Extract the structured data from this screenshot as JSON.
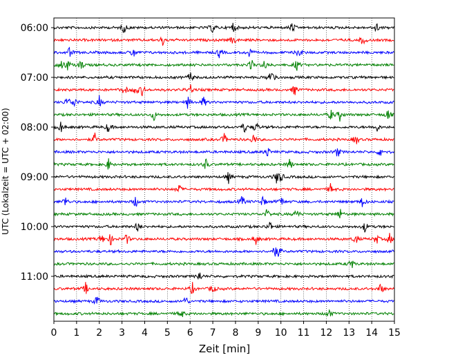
{
  "chart_data": {
    "type": "line",
    "subtype": "helicorder",
    "xlabel": "Zeit  [min]",
    "ylabel": "UTC (Lokalzeit = UTC + 02:00)",
    "x_ticks": [
      "0",
      "1",
      "2",
      "3",
      "4",
      "5",
      "6",
      "7",
      "8",
      "9",
      "10",
      "11",
      "12",
      "13",
      "14",
      "15"
    ],
    "xlim": [
      0,
      15
    ],
    "y_tick_labels": [
      "06:00",
      "07:00",
      "08:00",
      "09:00",
      "10:00",
      "11:00"
    ],
    "grid": "vertical dotted at each minute",
    "trace_count": 24,
    "trace_colors": [
      "#000000",
      "#ff0000",
      "#0000ff",
      "#008000"
    ],
    "traces": [
      {
        "start": "06:00",
        "events": [
          3.1,
          7.0,
          7.9,
          10.5,
          14.2
        ]
      },
      {
        "start": "06:15",
        "events": [
          4.8,
          7.9,
          13.6
        ]
      },
      {
        "start": "06:30",
        "events": [
          0.7,
          3.5,
          7.3,
          8.6,
          10.8
        ]
      },
      {
        "start": "06:45",
        "events": [
          0.3,
          0.6,
          1.2,
          8.7,
          9.3,
          10.7
        ]
      },
      {
        "start": "07:00",
        "events": [
          6.0,
          9.5,
          9.7
        ]
      },
      {
        "start": "07:15",
        "events": [
          3.1,
          3.6,
          3.9,
          6.0,
          10.6
        ]
      },
      {
        "start": "07:30",
        "events": [
          0.6,
          0.9,
          2.0,
          5.9,
          6.6
        ]
      },
      {
        "start": "07:45",
        "events": [
          4.4,
          12.2,
          12.6,
          14.7
        ]
      },
      {
        "start": "08:00",
        "events": [
          0.3,
          2.4,
          8.4,
          8.9,
          14.2
        ]
      },
      {
        "start": "08:15",
        "events": [
          1.8,
          7.5,
          8.8,
          13.3
        ]
      },
      {
        "start": "08:30",
        "events": [
          9.4,
          12.5,
          14.4
        ]
      },
      {
        "start": "08:45",
        "events": [
          2.4,
          6.7,
          10.4
        ]
      },
      {
        "start": "09:00",
        "events": [
          7.7,
          9.8,
          10.0
        ]
      },
      {
        "start": "09:15",
        "events": [
          5.5,
          12.2
        ]
      },
      {
        "start": "09:30",
        "events": [
          0.5,
          3.6,
          8.3,
          9.2,
          10.0,
          13.6
        ]
      },
      {
        "start": "09:45",
        "events": [
          9.4,
          10.7,
          12.6
        ]
      },
      {
        "start": "10:00",
        "events": [
          3.7,
          9.5,
          13.7
        ]
      },
      {
        "start": "10:15",
        "events": [
          2.1,
          2.5,
          3.2,
          8.9,
          13.3,
          14.2,
          14.8
        ]
      },
      {
        "start": "10:30",
        "events": [
          9.7,
          9.9
        ]
      },
      {
        "start": "10:45",
        "events": [
          13.1
        ]
      },
      {
        "start": "11:00",
        "events": [
          6.4
        ]
      },
      {
        "start": "11:15",
        "events": [
          1.4,
          6.1,
          7.0,
          14.4
        ]
      },
      {
        "start": "11:30",
        "events": [
          1.9,
          5.8
        ]
      },
      {
        "start": "11:45",
        "events": [
          5.6,
          12.1
        ]
      }
    ]
  }
}
